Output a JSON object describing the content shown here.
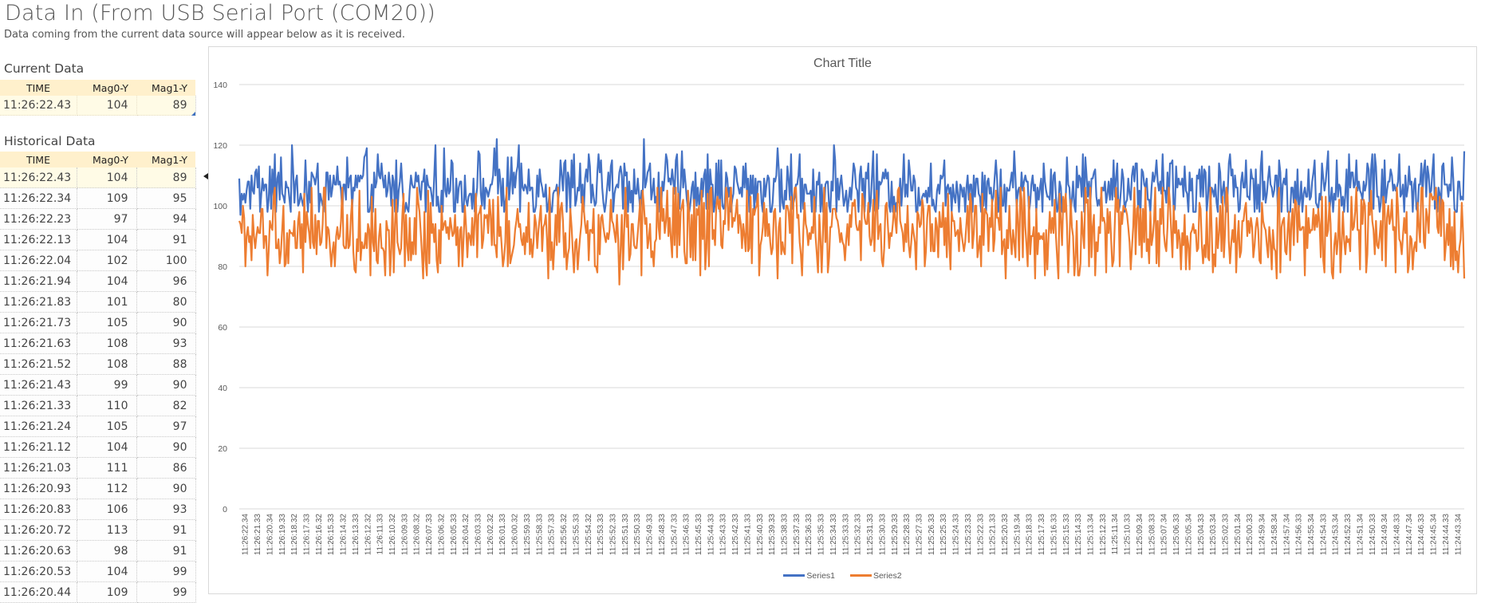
{
  "header": {
    "title": "Data In (From USB Serial Port (COM20))",
    "subtitle": "Data coming from the current data source will appear below as it is received."
  },
  "current_data": {
    "label": "Current Data",
    "columns": [
      "TIME",
      "Mag0-Y",
      "Mag1-Y"
    ],
    "row": {
      "time": "11:26:22.43",
      "mag0": "104",
      "mag1": "89"
    }
  },
  "historical_data": {
    "label": "Historical Data",
    "columns": [
      "TIME",
      "Mag0-Y",
      "Mag1-Y"
    ],
    "rows": [
      {
        "time": "11:26:22.43",
        "mag0": "104",
        "mag1": "89"
      },
      {
        "time": "11:26:22.34",
        "mag0": "109",
        "mag1": "95"
      },
      {
        "time": "11:26:22.23",
        "mag0": "97",
        "mag1": "94"
      },
      {
        "time": "11:26:22.13",
        "mag0": "104",
        "mag1": "91"
      },
      {
        "time": "11:26:22.04",
        "mag0": "102",
        "mag1": "100"
      },
      {
        "time": "11:26:21.94",
        "mag0": "104",
        "mag1": "96"
      },
      {
        "time": "11:26:21.83",
        "mag0": "101",
        "mag1": "80"
      },
      {
        "time": "11:26:21.73",
        "mag0": "105",
        "mag1": "90"
      },
      {
        "time": "11:26:21.63",
        "mag0": "108",
        "mag1": "93"
      },
      {
        "time": "11:26:21.52",
        "mag0": "108",
        "mag1": "88"
      },
      {
        "time": "11:26:21.43",
        "mag0": "99",
        "mag1": "90"
      },
      {
        "time": "11:26:21.33",
        "mag0": "110",
        "mag1": "82"
      },
      {
        "time": "11:26:21.24",
        "mag0": "105",
        "mag1": "97"
      },
      {
        "time": "11:26:21.12",
        "mag0": "104",
        "mag1": "90"
      },
      {
        "time": "11:26:21.03",
        "mag0": "111",
        "mag1": "86"
      },
      {
        "time": "11:26:20.93",
        "mag0": "112",
        "mag1": "90"
      },
      {
        "time": "11:26:20.83",
        "mag0": "106",
        "mag1": "93"
      },
      {
        "time": "11:26:20.72",
        "mag0": "113",
        "mag1": "91"
      },
      {
        "time": "11:26:20.63",
        "mag0": "98",
        "mag1": "91"
      },
      {
        "time": "11:26:20.53",
        "mag0": "104",
        "mag1": "99"
      },
      {
        "time": "11:26:20.44",
        "mag0": "109",
        "mag1": "99"
      }
    ]
  },
  "chart_data": {
    "type": "line",
    "title": "Chart Title",
    "xlabel": "",
    "ylabel": "",
    "ylim": [
      0,
      140
    ],
    "y_ticks": [
      0,
      20,
      40,
      60,
      80,
      100,
      120,
      140
    ],
    "grid": true,
    "legend_position": "bottom",
    "x_tick_labels": [
      "11:26:22.34",
      "11:26:21.33",
      "11:26:20.34",
      "11:26:19.33",
      "11:26:18.32",
      "11:26:17.33",
      "11:26:16.32",
      "11:26:15.33",
      "11:26:14.32",
      "11:26:13.33",
      "11:26:12.32",
      "11:26:11.33",
      "11:26:10.32",
      "11:26:09.33",
      "11:26:08.32",
      "11:26:07.33",
      "11:26:06.32",
      "11:26:05.33",
      "11:26:04.32",
      "11:26:03.33",
      "11:26:02.32",
      "11:26:01.33",
      "11:26:00.32",
      "11:25:59.33",
      "11:25:58.33",
      "11:25:57.33",
      "11:25:56.32",
      "11:25:55.33",
      "11:25:54.32",
      "11:25:53.33",
      "11:25:52.33",
      "11:25:51.33",
      "11:25:50.33",
      "11:25:49.33",
      "11:25:48.33",
      "11:25:47.33",
      "11:25:46.33",
      "11:25:45.33",
      "11:25:44.33",
      "11:25:43.33",
      "11:25:42.33",
      "11:25:41.33",
      "11:25:40.33",
      "11:25:39.33",
      "11:25:38.33",
      "11:25:37.33",
      "11:25:36.33",
      "11:25:35.33",
      "11:25:34.33",
      "11:25:33.33",
      "11:25:32.33",
      "11:25:31.33",
      "11:25:30.33",
      "11:25:29.33",
      "11:25:28.33",
      "11:25:27.33",
      "11:25:26.33",
      "11:25:25.33",
      "11:25:24.33",
      "11:25:23.33",
      "11:25:22.33",
      "11:25:21.33",
      "11:25:20.33",
      "11:25:19.34",
      "11:25:18.33",
      "11:25:17.33",
      "11:25:16.33",
      "11:25:15.33",
      "11:25:14.33",
      "11:25:13.34",
      "11:25:12.33",
      "11:25:11.34",
      "11:25:10.33",
      "11:25:09.34",
      "11:25:08.33",
      "11:25:07.34",
      "11:25:06.33",
      "11:25:05.34",
      "11:25:04.33",
      "11:25:03.34",
      "11:25:02.33",
      "11:25:01.34",
      "11:25:00.33",
      "11:24:59.34",
      "11:24:58.34",
      "11:24:57.34",
      "11:24:56.33",
      "11:24:55.34",
      "11:24:54.33",
      "11:24:53.34",
      "11:24:52.33",
      "11:24:51.34",
      "11:24:50.33",
      "11:24:49.34",
      "11:24:48.33",
      "11:24:47.34",
      "11:24:46.33",
      "11:24:45.34",
      "11:24:44.33",
      "11:24:43.34"
    ],
    "series": [
      {
        "name": "Series1",
        "color": "#4472c4",
        "approx_range": [
          96,
          122
        ],
        "approx_mean": 106,
        "values_first_points": [
          109,
          97,
          104,
          102,
          104,
          101,
          105,
          108,
          108,
          99,
          110,
          105,
          104,
          111,
          112,
          106,
          113,
          98,
          104,
          109
        ]
      },
      {
        "name": "Series2",
        "color": "#ed7d31",
        "approx_range": [
          74,
          108
        ],
        "approx_mean": 92,
        "values_first_points": [
          95,
          94,
          91,
          100,
          96,
          80,
          90,
          93,
          88,
          90,
          82,
          97,
          90,
          86,
          90,
          93,
          91,
          91,
          99,
          99
        ]
      }
    ],
    "points_per_series_approx": 1000,
    "notable_points": [
      {
        "series": "Series1",
        "x_label_near": "11:26:01.33",
        "value": 122
      },
      {
        "series": "Series1",
        "x_label_near": "11:25:49.33",
        "value": 122
      },
      {
        "series": "Series2",
        "x_label_near": "11:25:51.33",
        "value": 74
      },
      {
        "series": "Series2",
        "x_label_near": "11:25:34.33",
        "value": 78
      }
    ]
  }
}
